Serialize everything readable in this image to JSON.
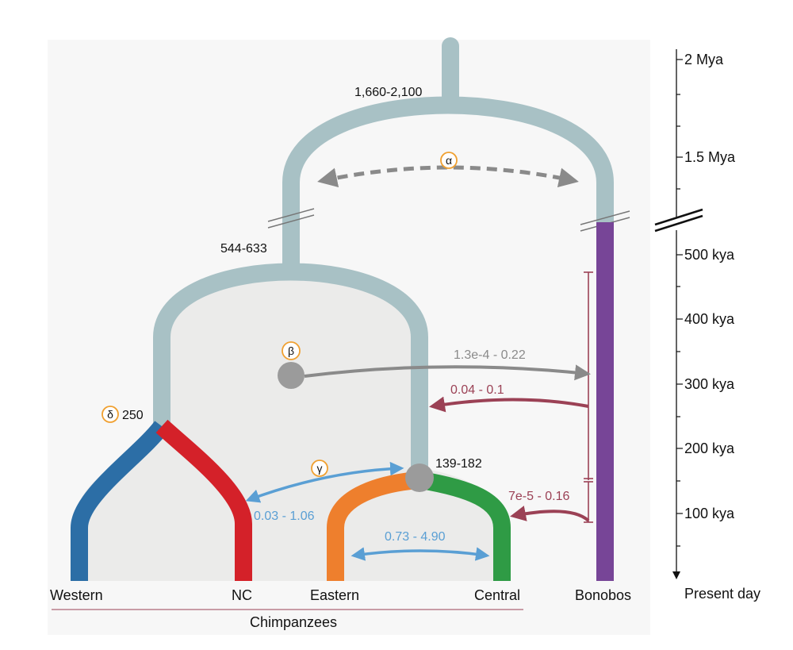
{
  "labels": {
    "root_time": "1,660-2,100",
    "chimp_bonobo_split_marker": "α",
    "chimp_time": "544-633",
    "beta_marker": "β",
    "delta_marker": "δ",
    "western_nc_time": "250",
    "gamma_marker": "γ",
    "eastern_central_time": "139-182"
  },
  "migration": {
    "beta_to_bonobo": "1.3e-4 - 0.22",
    "bonobo_to_ancestor": "0.04 - 0.1",
    "bonobo_to_eastern_central": "7e-5 - 0.16",
    "gamma_to_nc": "0.03 - 1.06",
    "eastern_central": "0.73 - 4.90"
  },
  "leaves": {
    "western": "Western",
    "nc": "NC",
    "eastern": "Eastern",
    "central": "Central",
    "bonobos": "Bonobos",
    "group": "Chimpanzees"
  },
  "timeline": {
    "ticks": [
      "2 Mya",
      "1.5 Mya",
      "500 kya",
      "400 kya",
      "300 kya",
      "200 kya",
      "100 kya"
    ],
    "present": "Present day"
  },
  "colors": {
    "ancestral_branch": "#a8c1c5",
    "western": "#2c6ea6",
    "nc": "#d42129",
    "eastern": "#ee7f2d",
    "central": "#2f9b45",
    "bonobos": "#774597",
    "migration_gray": "#8a8a8a",
    "migration_red": "#9b4155",
    "migration_blue": "#5a9fd4",
    "marker_orange": "#f0a030",
    "fill_area": "#ebebea",
    "node_gray": "#9b9b9b"
  }
}
